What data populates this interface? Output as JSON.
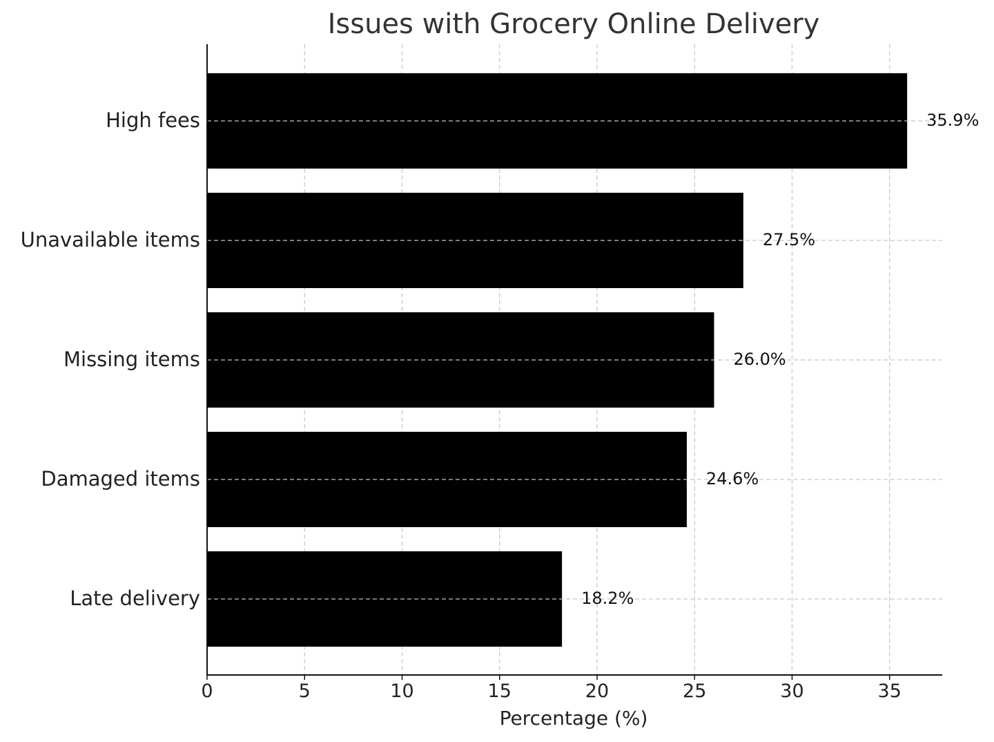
{
  "chart_data": {
    "type": "bar",
    "orientation": "horizontal",
    "title": "Issues with Grocery Online Delivery",
    "xlabel": "Percentage (%)",
    "ylabel": "",
    "categories": [
      "High fees",
      "Unavailable items",
      "Missing items",
      "Damaged items",
      "Late delivery"
    ],
    "values": [
      35.9,
      27.5,
      26.0,
      24.6,
      18.2
    ],
    "value_labels": [
      "35.9%",
      "27.5%",
      "26.0%",
      "24.6%",
      "18.2%"
    ],
    "xticks": [
      "0",
      "5",
      "10",
      "15",
      "20",
      "25",
      "30",
      "35"
    ],
    "xtick_values": [
      0,
      5,
      10,
      15,
      20,
      25,
      30,
      35
    ],
    "xlim": [
      0,
      37.7
    ],
    "grid": true,
    "bar_color": "#000000",
    "grid_color": "#c8c8c8"
  }
}
